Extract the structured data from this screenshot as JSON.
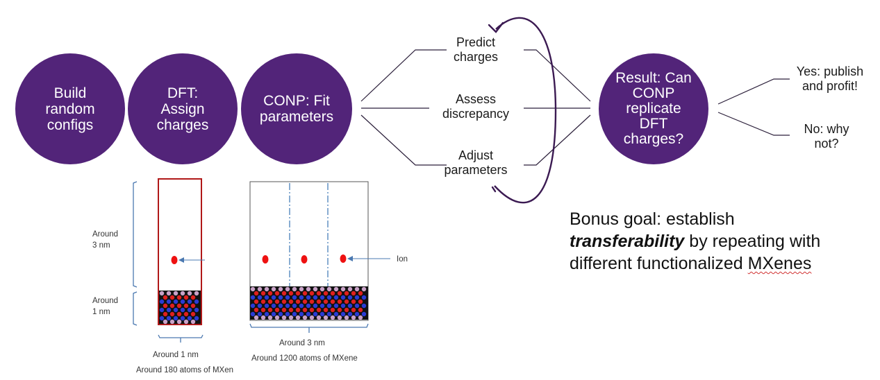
{
  "pipeline": {
    "step1": "Build\nrandom\nconfigs",
    "step2": "DFT:\nAssign\ncharges",
    "step3": "CONP: Fit\nparameters",
    "result": "Result: Can\nCONP\nreplicate\nDFT\ncharges?"
  },
  "loop": {
    "predict": "Predict\ncharges",
    "assess": "Assess\ndiscrepancy",
    "adjust": "Adjust\nparameters"
  },
  "outcomes": {
    "yes": "Yes: publish\nand profit!",
    "no": "No: why\nnot?"
  },
  "bonus": {
    "prefix": "Bonus goal: establish",
    "emphasis": "transferability",
    "middle": " by repeating with different functionalized ",
    "last": "MXenes"
  },
  "figure": {
    "around_3nm_vertical": "Around\n3 nm",
    "around_1nm_vertical": "Around\n1 nm",
    "ion": "Ion",
    "small_width": "Around 1 nm",
    "small_atoms": "Around 180 atoms of MXen",
    "large_width": "Around 3 nm",
    "large_atoms": "Around 1200 atoms of MXene"
  },
  "colors": {
    "purple": "#522479",
    "ion_red": "#ee1111",
    "box_red": "#b01818",
    "dash_blue": "#3a74b4"
  }
}
